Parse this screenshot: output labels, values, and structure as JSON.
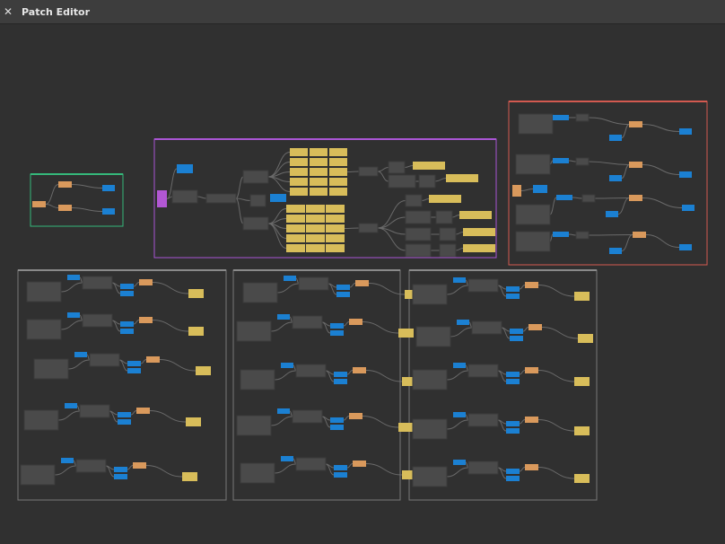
{
  "window": {
    "title": "Patch Editor",
    "close_icon": "close-icon"
  },
  "colors": {
    "background": "#303030",
    "node": "#4a4a4a",
    "node_blue": "#1b80d2",
    "node_orange": "#d9995c",
    "node_yellow": "#d8bd5a",
    "node_purple": "#b257d4",
    "edge": "#6a6a6a",
    "group_green": "#35b87a",
    "group_purple": "#a955d4",
    "group_red": "#d35a50",
    "group_gray": "#8a8a8a"
  }
}
